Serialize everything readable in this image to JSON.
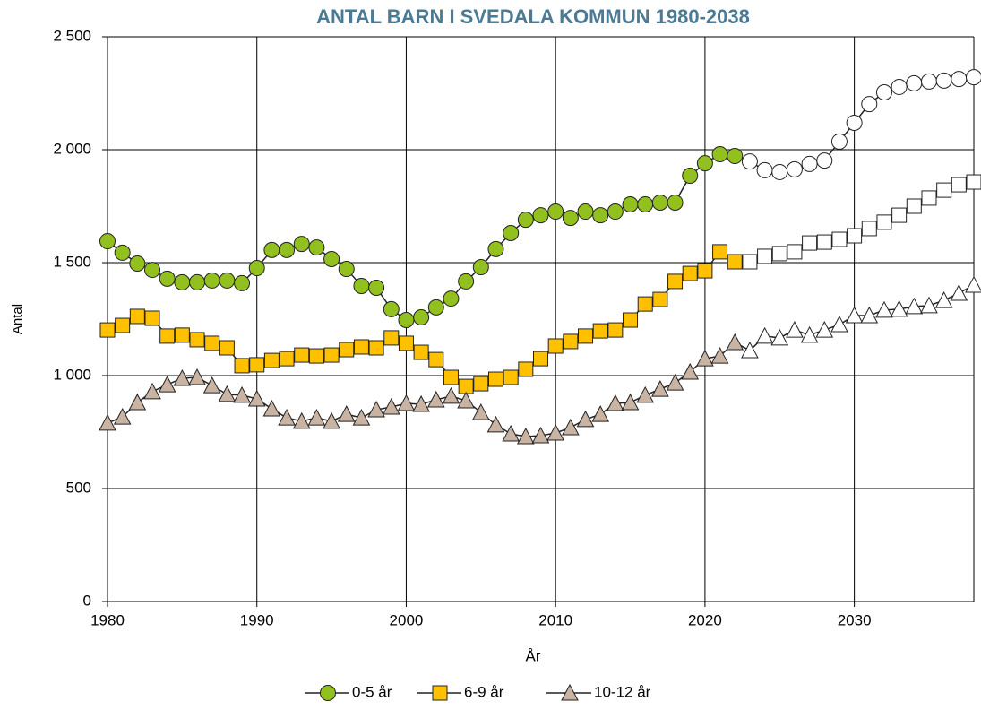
{
  "chart_data": {
    "type": "line",
    "title": "ANTAL BARN I SVEDALA KOMMUN 1980-2038",
    "x_label": "År",
    "y_label": "Antal",
    "x": [
      1980,
      1981,
      1982,
      1983,
      1984,
      1985,
      1986,
      1987,
      1988,
      1989,
      1990,
      1991,
      1992,
      1993,
      1994,
      1995,
      1996,
      1997,
      1998,
      1999,
      2000,
      2001,
      2002,
      2003,
      2004,
      2005,
      2006,
      2007,
      2008,
      2009,
      2010,
      2011,
      2012,
      2013,
      2014,
      2015,
      2016,
      2017,
      2018,
      2019,
      2020,
      2021,
      2022,
      2023,
      2024,
      2025,
      2026,
      2027,
      2028,
      2029,
      2030,
      2031,
      2032,
      2033,
      2034,
      2035,
      2036,
      2037,
      2038
    ],
    "hollow_from": 2023,
    "series": [
      {
        "name": "0-5 år",
        "color": "#92c01f",
        "marker": "circle",
        "values": [
          1595,
          1544,
          1496,
          1468,
          1429,
          1413,
          1413,
          1421,
          1421,
          1409,
          1476,
          1556,
          1556,
          1583,
          1567,
          1516,
          1472,
          1397,
          1389,
          1294,
          1246,
          1258,
          1302,
          1341,
          1417,
          1480,
          1560,
          1631,
          1690,
          1710,
          1726,
          1698,
          1726,
          1710,
          1726,
          1758,
          1758,
          1766,
          1766,
          1885,
          1940,
          1980,
          1972,
          1948,
          1909,
          1901,
          1913,
          1937,
          1952,
          2036,
          2119,
          2202,
          2254,
          2278,
          2294,
          2302,
          2306,
          2313,
          2321
        ]
      },
      {
        "name": "6-9 år",
        "color": "#ffc000",
        "marker": "square",
        "values": [
          1202,
          1222,
          1262,
          1254,
          1175,
          1179,
          1159,
          1143,
          1123,
          1044,
          1048,
          1067,
          1075,
          1091,
          1087,
          1091,
          1115,
          1127,
          1123,
          1167,
          1143,
          1103,
          1071,
          992,
          952,
          964,
          984,
          992,
          1028,
          1075,
          1131,
          1151,
          1175,
          1198,
          1202,
          1246,
          1317,
          1337,
          1417,
          1452,
          1464,
          1548,
          1504,
          1504,
          1528,
          1540,
          1548,
          1587,
          1591,
          1603,
          1619,
          1651,
          1679,
          1710,
          1750,
          1786,
          1821,
          1845,
          1857
        ]
      },
      {
        "name": "10-12 år",
        "color": "#c9b3a3",
        "marker": "triangle",
        "values": [
          790,
          817,
          881,
          929,
          960,
          988,
          992,
          956,
          917,
          913,
          897,
          853,
          813,
          798,
          813,
          798,
          829,
          813,
          849,
          861,
          877,
          873,
          893,
          909,
          889,
          837,
          782,
          742,
          730,
          734,
          746,
          770,
          806,
          829,
          877,
          881,
          913,
          940,
          968,
          1016,
          1075,
          1087,
          1147,
          1111,
          1175,
          1167,
          1202,
          1179,
          1202,
          1226,
          1266,
          1266,
          1290,
          1294,
          1306,
          1310,
          1333,
          1365,
          1401
        ]
      }
    ],
    "xlim": [
      1980,
      2038
    ],
    "xticks": [
      1980,
      1990,
      2000,
      2010,
      2020,
      2030
    ],
    "ylim": [
      0,
      2500
    ],
    "yticks": [
      0,
      500,
      {
        "value": 1000,
        "label": "1 000"
      },
      {
        "value": 1500,
        "label": "1 500"
      },
      {
        "value": 2000,
        "label": "2 000"
      },
      {
        "value": 2500,
        "label": "2 500"
      }
    ],
    "grid": true,
    "legend": "bottom"
  }
}
